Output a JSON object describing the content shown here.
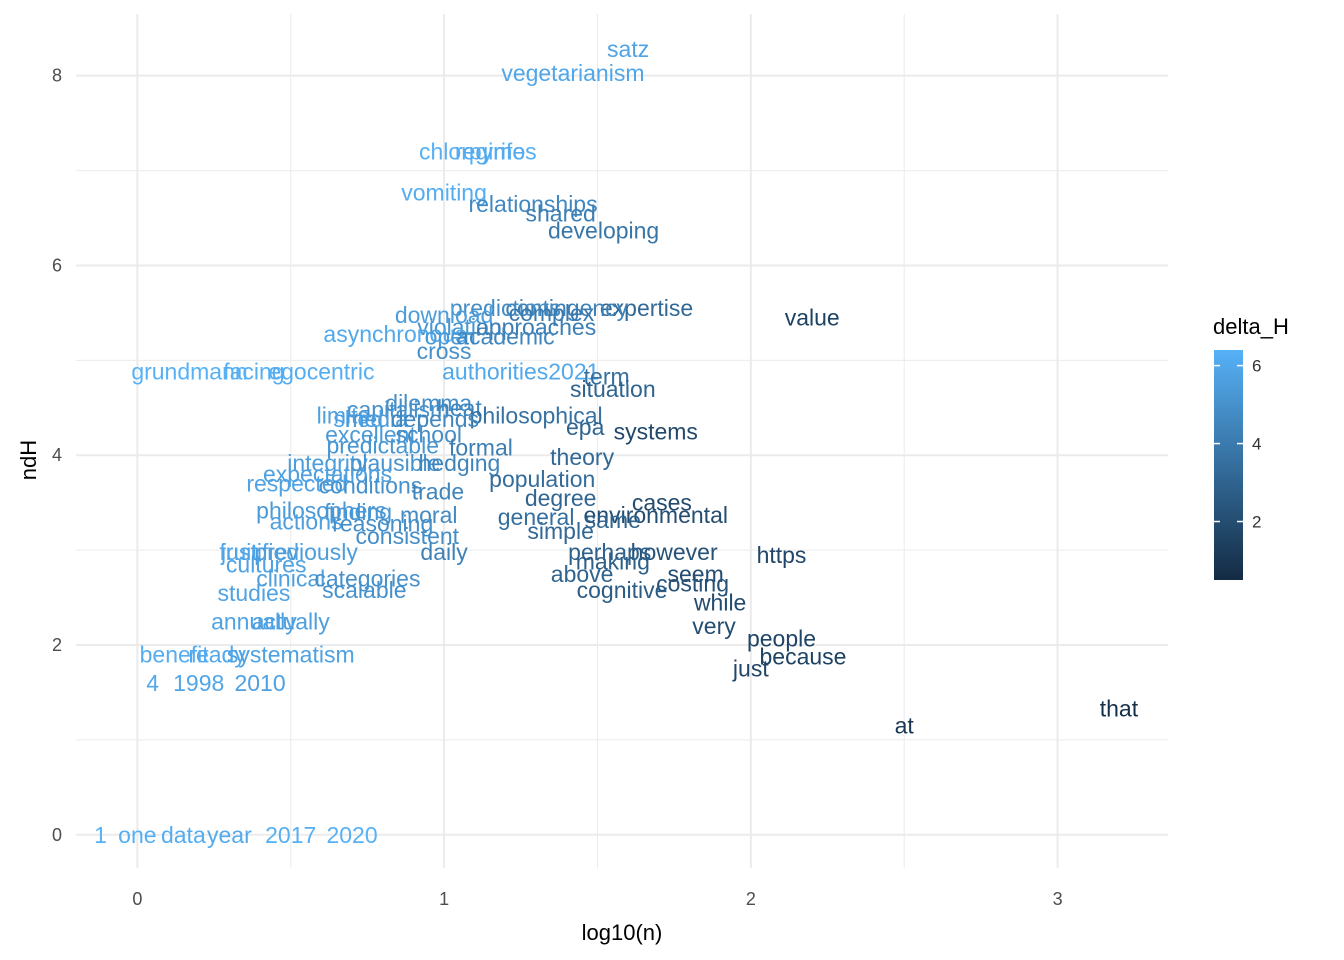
{
  "chart_data": {
    "type": "scatter",
    "title": "",
    "xlabel": "log10(n)",
    "ylabel": "ndH",
    "xlim": [
      -0.2,
      3.36
    ],
    "ylim": [
      -0.35,
      8.65
    ],
    "x_ticks": [
      "0",
      "1",
      "2",
      "3"
    ],
    "y_ticks": [
      "0",
      "2",
      "4",
      "6",
      "8"
    ],
    "grid": true,
    "legend": {
      "title": "delta_H",
      "ticks": [
        "2",
        "4",
        "6"
      ],
      "range": [
        0.5,
        6.4
      ],
      "position": "right"
    },
    "color_scale": {
      "low": "#132b43",
      "high": "#56b1f7"
    },
    "points": [
      {
        "label": "satz",
        "x": 1.6,
        "y": 8.28,
        "c": 5.8
      },
      {
        "label": "vegetarianism",
        "x": 1.42,
        "y": 8.03,
        "c": 5.9
      },
      {
        "label": "chlorpyrifos",
        "x": 1.11,
        "y": 7.2,
        "c": 6.3
      },
      {
        "label": "regime",
        "x": 1.15,
        "y": 7.2,
        "c": 6.1
      },
      {
        "label": "vomiting",
        "x": 1.0,
        "y": 6.77,
        "c": 6.2
      },
      {
        "label": "relationships",
        "x": 1.29,
        "y": 6.65,
        "c": 4.6
      },
      {
        "label": "shared",
        "x": 1.38,
        "y": 6.55,
        "c": 4.2
      },
      {
        "label": "developing",
        "x": 1.52,
        "y": 6.37,
        "c": 3.8
      },
      {
        "label": "value",
        "x": 2.2,
        "y": 5.45,
        "c": 1.5
      },
      {
        "label": "expertise",
        "x": 1.66,
        "y": 5.55,
        "c": 3.2
      },
      {
        "label": "contingency",
        "x": 1.4,
        "y": 5.55,
        "c": 4.3
      },
      {
        "label": "predictions",
        "x": 1.2,
        "y": 5.55,
        "c": 4.8
      },
      {
        "label": "complex",
        "x": 1.35,
        "y": 5.5,
        "c": 4.0
      },
      {
        "label": "download",
        "x": 1.0,
        "y": 5.48,
        "c": 5.5
      },
      {
        "label": "violation",
        "x": 1.05,
        "y": 5.35,
        "c": 5.2
      },
      {
        "label": "approaches",
        "x": 1.3,
        "y": 5.35,
        "c": 4.2
      },
      {
        "label": "asynchronous",
        "x": 0.84,
        "y": 5.28,
        "c": 6.0
      },
      {
        "label": "open",
        "x": 1.02,
        "y": 5.25,
        "c": 5.4
      },
      {
        "label": "academic",
        "x": 1.2,
        "y": 5.25,
        "c": 4.5
      },
      {
        "label": "cross",
        "x": 1.0,
        "y": 5.1,
        "c": 5.0
      },
      {
        "label": "grundmann",
        "x": 0.17,
        "y": 4.88,
        "c": 6.4
      },
      {
        "label": "facing",
        "x": 0.38,
        "y": 4.88,
        "c": 6.3
      },
      {
        "label": "egocentric",
        "x": 0.6,
        "y": 4.88,
        "c": 6.2
      },
      {
        "label": "authorities2021",
        "x": 1.25,
        "y": 4.88,
        "c": 6.0
      },
      {
        "label": "term",
        "x": 1.53,
        "y": 4.83,
        "c": 3.5
      },
      {
        "label": "situation",
        "x": 1.55,
        "y": 4.7,
        "c": 3.0
      },
      {
        "label": "dilemma",
        "x": 0.95,
        "y": 4.55,
        "c": 4.8
      },
      {
        "label": "capitalism",
        "x": 0.85,
        "y": 4.48,
        "c": 5.0
      },
      {
        "label": "heat",
        "x": 1.05,
        "y": 4.5,
        "c": 4.5
      },
      {
        "label": "limits",
        "x": 0.67,
        "y": 4.42,
        "c": 5.6
      },
      {
        "label": "shed",
        "x": 0.72,
        "y": 4.38,
        "c": 5.8
      },
      {
        "label": "media",
        "x": 0.78,
        "y": 4.38,
        "c": 5.4
      },
      {
        "label": "philosophical",
        "x": 1.3,
        "y": 4.42,
        "c": 3.6
      },
      {
        "label": "depends",
        "x": 0.97,
        "y": 4.38,
        "c": 4.6
      },
      {
        "label": "epa",
        "x": 1.46,
        "y": 4.3,
        "c": 3.0
      },
      {
        "label": "systems",
        "x": 1.69,
        "y": 4.25,
        "c": 1.8
      },
      {
        "label": "excellent",
        "x": 0.76,
        "y": 4.22,
        "c": 5.4
      },
      {
        "label": "school",
        "x": 0.95,
        "y": 4.22,
        "c": 4.8
      },
      {
        "label": "predictable",
        "x": 0.8,
        "y": 4.1,
        "c": 5.2
      },
      {
        "label": "formal",
        "x": 1.12,
        "y": 4.08,
        "c": 4.2
      },
      {
        "label": "theory",
        "x": 1.45,
        "y": 3.98,
        "c": 3.2
      },
      {
        "label": "integrity",
        "x": 0.62,
        "y": 3.92,
        "c": 5.5
      },
      {
        "label": "plausible",
        "x": 0.84,
        "y": 3.92,
        "c": 5.1
      },
      {
        "label": "hedging",
        "x": 1.05,
        "y": 3.92,
        "c": 4.4
      },
      {
        "label": "population",
        "x": 1.32,
        "y": 3.75,
        "c": 3.4
      },
      {
        "label": "expectations",
        "x": 0.62,
        "y": 3.8,
        "c": 5.6
      },
      {
        "label": "respected",
        "x": 0.52,
        "y": 3.7,
        "c": 5.8
      },
      {
        "label": "conditions",
        "x": 0.76,
        "y": 3.68,
        "c": 5.0
      },
      {
        "label": "trade",
        "x": 0.98,
        "y": 3.62,
        "c": 4.5
      },
      {
        "label": "degree",
        "x": 1.38,
        "y": 3.55,
        "c": 3.1
      },
      {
        "label": "cases",
        "x": 1.71,
        "y": 3.5,
        "c": 1.9
      },
      {
        "label": "environmental",
        "x": 1.69,
        "y": 3.37,
        "c": 2.0
      },
      {
        "label": "philosophers",
        "x": 0.6,
        "y": 3.42,
        "c": 5.4
      },
      {
        "label": "finding",
        "x": 0.72,
        "y": 3.4,
        "c": 5.2
      },
      {
        "label": "moral",
        "x": 0.95,
        "y": 3.37,
        "c": 4.7
      },
      {
        "label": "general",
        "x": 1.3,
        "y": 3.35,
        "c": 3.5
      },
      {
        "label": "same",
        "x": 1.55,
        "y": 3.32,
        "c": 3.0
      },
      {
        "label": "actions",
        "x": 0.55,
        "y": 3.3,
        "c": 5.6
      },
      {
        "label": "reasoning",
        "x": 0.8,
        "y": 3.28,
        "c": 4.9
      },
      {
        "label": "simple",
        "x": 1.38,
        "y": 3.2,
        "c": 3.2
      },
      {
        "label": "consistent",
        "x": 0.88,
        "y": 3.15,
        "c": 4.8
      },
      {
        "label": "fruit",
        "x": 0.33,
        "y": 2.98,
        "c": 6.0
      },
      {
        "label": "justified",
        "x": 0.4,
        "y": 2.98,
        "c": 5.8
      },
      {
        "label": "previously",
        "x": 0.55,
        "y": 2.98,
        "c": 5.5
      },
      {
        "label": "daily",
        "x": 1.0,
        "y": 2.98,
        "c": 4.3
      },
      {
        "label": "however",
        "x": 1.75,
        "y": 2.98,
        "c": 2.2
      },
      {
        "label": "https",
        "x": 2.1,
        "y": 2.95,
        "c": 1.7
      },
      {
        "label": "perhaps",
        "x": 1.54,
        "y": 2.98,
        "c": 2.9
      },
      {
        "label": "making",
        "x": 1.55,
        "y": 2.88,
        "c": 2.8
      },
      {
        "label": "cultures",
        "x": 0.42,
        "y": 2.85,
        "c": 5.7
      },
      {
        "label": "clinical",
        "x": 0.5,
        "y": 2.7,
        "c": 5.6
      },
      {
        "label": "categories",
        "x": 0.75,
        "y": 2.7,
        "c": 5.0
      },
      {
        "label": "above",
        "x": 1.45,
        "y": 2.75,
        "c": 3.0
      },
      {
        "label": "seem",
        "x": 1.82,
        "y": 2.75,
        "c": 2.0
      },
      {
        "label": "costing",
        "x": 1.81,
        "y": 2.65,
        "c": 2.2
      },
      {
        "label": "scalable",
        "x": 0.74,
        "y": 2.58,
        "c": 5.0
      },
      {
        "label": "cognitive",
        "x": 1.58,
        "y": 2.58,
        "c": 2.7
      },
      {
        "label": "while",
        "x": 1.9,
        "y": 2.45,
        "c": 1.9
      },
      {
        "label": "studies",
        "x": 0.38,
        "y": 2.55,
        "c": 5.8
      },
      {
        "label": "very",
        "x": 1.88,
        "y": 2.2,
        "c": 2.0
      },
      {
        "label": "people",
        "x": 2.1,
        "y": 2.07,
        "c": 1.6
      },
      {
        "label": "because",
        "x": 2.17,
        "y": 1.88,
        "c": 1.5
      },
      {
        "label": "just",
        "x": 2.0,
        "y": 1.75,
        "c": 1.7
      },
      {
        "label": "that",
        "x": 3.2,
        "y": 1.33,
        "c": 0.7
      },
      {
        "label": "at",
        "x": 2.5,
        "y": 1.15,
        "c": 1.0
      },
      {
        "label": "actually",
        "x": 0.5,
        "y": 2.25,
        "c": 5.6
      },
      {
        "label": "annually",
        "x": 0.38,
        "y": 2.25,
        "c": 5.8
      },
      {
        "label": "ready",
        "x": 0.26,
        "y": 1.9,
        "c": 6.0
      },
      {
        "label": "benefit",
        "x": 0.12,
        "y": 1.9,
        "c": 6.2
      },
      {
        "label": "systematism",
        "x": 0.5,
        "y": 1.9,
        "c": 5.7
      },
      {
        "label": "4",
        "x": 0.05,
        "y": 1.6,
        "c": 6.0
      },
      {
        "label": "1998",
        "x": 0.2,
        "y": 1.6,
        "c": 5.9
      },
      {
        "label": "2010",
        "x": 0.4,
        "y": 1.6,
        "c": 5.7
      },
      {
        "label": "2020",
        "x": 0.7,
        "y": 0.0,
        "c": 6.4
      },
      {
        "label": "2017",
        "x": 0.5,
        "y": 0.0,
        "c": 6.3
      },
      {
        "label": "1",
        "x": -0.12,
        "y": 0.0,
        "c": 6.4
      },
      {
        "label": "one",
        "x": 0.0,
        "y": 0.0,
        "c": 6.3
      },
      {
        "label": "data",
        "x": 0.15,
        "y": 0.0,
        "c": 6.2
      },
      {
        "label": "year",
        "x": 0.3,
        "y": 0.0,
        "c": 6.1
      }
    ]
  }
}
